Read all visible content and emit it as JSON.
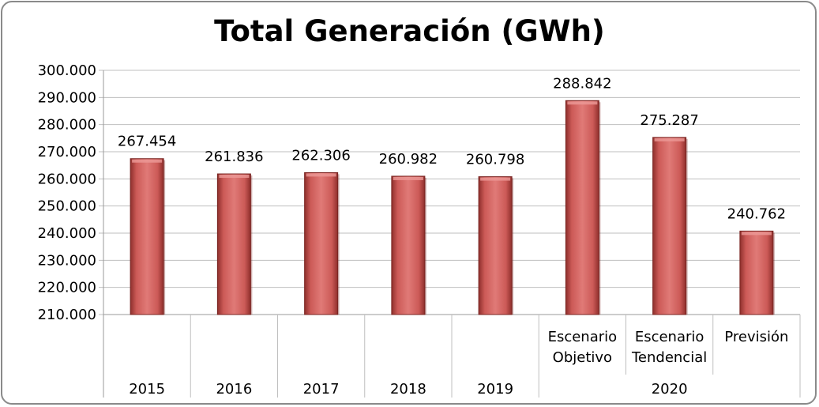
{
  "chart_data": {
    "type": "bar",
    "title": "Total Generación (GWh)",
    "xlabel": "",
    "ylabel": "",
    "ylim": [
      210000,
      300000
    ],
    "y_ticks": [
      {
        "value": 300000,
        "label": "300.000"
      },
      {
        "value": 290000,
        "label": "290.000"
      },
      {
        "value": 280000,
        "label": "280.000"
      },
      {
        "value": 270000,
        "label": "270.000"
      },
      {
        "value": 260000,
        "label": "260.000"
      },
      {
        "value": 250000,
        "label": "250.000"
      },
      {
        "value": 240000,
        "label": "240.000"
      },
      {
        "value": 230000,
        "label": "230.000"
      },
      {
        "value": 220000,
        "label": "220.000"
      },
      {
        "value": 210000,
        "label": "210.000"
      }
    ],
    "categories": [
      {
        "label": [
          "2015"
        ],
        "value": 267454,
        "value_label": "267.454"
      },
      {
        "label": [
          "2016"
        ],
        "value": 261836,
        "value_label": "261.836"
      },
      {
        "label": [
          "2017"
        ],
        "value": 262306,
        "value_label": "262.306"
      },
      {
        "label": [
          "2018"
        ],
        "value": 260982,
        "value_label": "260.982"
      },
      {
        "label": [
          "2019"
        ],
        "value": 260798,
        "value_label": "260.798"
      },
      {
        "label": [
          "Escenario",
          "Objetivo"
        ],
        "value": 288842,
        "value_label": "288.842"
      },
      {
        "label": [
          "Escenario",
          "Tendencial"
        ],
        "value": 275287,
        "value_label": "275.287"
      },
      {
        "label": [
          "Previsión"
        ],
        "value": 240762,
        "value_label": "240.762"
      }
    ],
    "group_labels": [
      {
        "label": "2020",
        "from": 5,
        "to": 7
      }
    ],
    "bar_color": "#c0504d",
    "grid": true,
    "legend": "none"
  }
}
